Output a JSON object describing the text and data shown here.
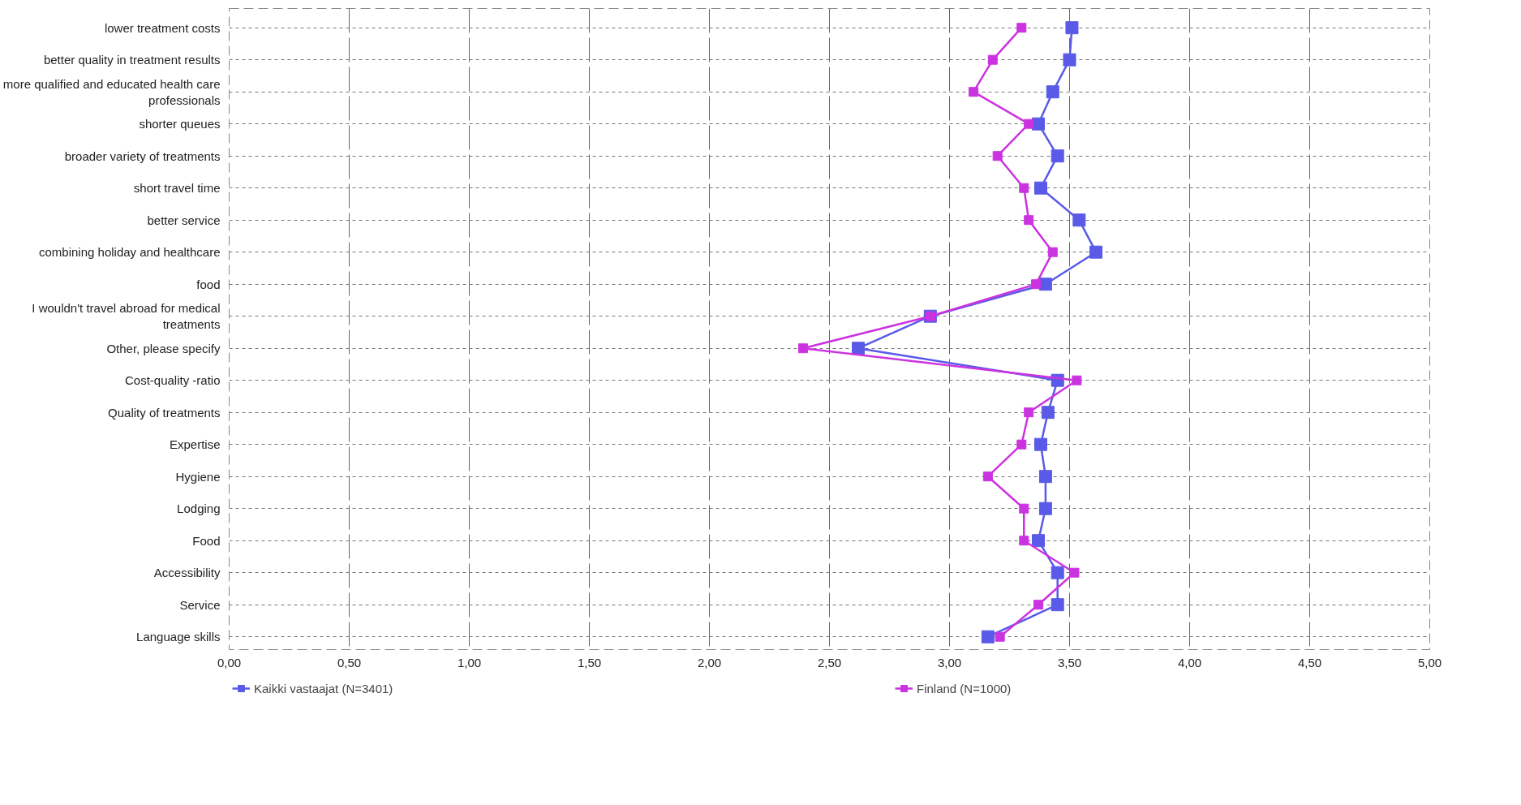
{
  "chart_data": {
    "type": "line",
    "orientation": "horizontal",
    "categories": [
      "lower treatment costs",
      "better quality in treatment results",
      "more qualified and educated health care professionals",
      "shorter queues",
      "broader variety of treatments",
      "short travel time",
      "better service",
      "combining holiday and healthcare",
      "food",
      "I wouldn't travel abroad for medical treatments",
      "Other, please specify",
      "Cost-quality -ratio",
      "Quality of treatments",
      "Expertise",
      "Hygiene",
      "Lodging",
      "Food",
      "Accessibility",
      "Service",
      "Language skills"
    ],
    "series": [
      {
        "name": "Kaikki vastaajat (N=3401)",
        "color": "#5a5ae8",
        "values": [
          3.51,
          3.5,
          3.43,
          3.37,
          3.45,
          3.38,
          3.54,
          3.61,
          3.4,
          2.92,
          2.62,
          3.45,
          3.41,
          3.38,
          3.4,
          3.4,
          3.37,
          3.45,
          3.45,
          3.16
        ]
      },
      {
        "name": "Finland (N=1000)",
        "color": "#cc33e0",
        "values": [
          3.3,
          3.18,
          3.1,
          3.33,
          3.2,
          3.31,
          3.33,
          3.43,
          3.36,
          2.92,
          2.39,
          3.53,
          3.33,
          3.3,
          3.16,
          3.31,
          3.31,
          3.52,
          3.37,
          3.21
        ]
      }
    ],
    "xlim": [
      0,
      5
    ],
    "xticks": [
      {
        "value": 0,
        "label": "0,00"
      },
      {
        "value": 0.5,
        "label": "0,50"
      },
      {
        "value": 1,
        "label": "1,00"
      },
      {
        "value": 1.5,
        "label": "1,50"
      },
      {
        "value": 2,
        "label": "2,00"
      },
      {
        "value": 2.5,
        "label": "2,50"
      },
      {
        "value": 3,
        "label": "3,00"
      },
      {
        "value": 3.5,
        "label": "3,50"
      },
      {
        "value": 4,
        "label": "4,00"
      },
      {
        "value": 4.5,
        "label": "4,50"
      },
      {
        "value": 5,
        "label": "5,00"
      }
    ],
    "grid": true,
    "legend": "bottom",
    "marker": "square",
    "line_style": "solid"
  }
}
